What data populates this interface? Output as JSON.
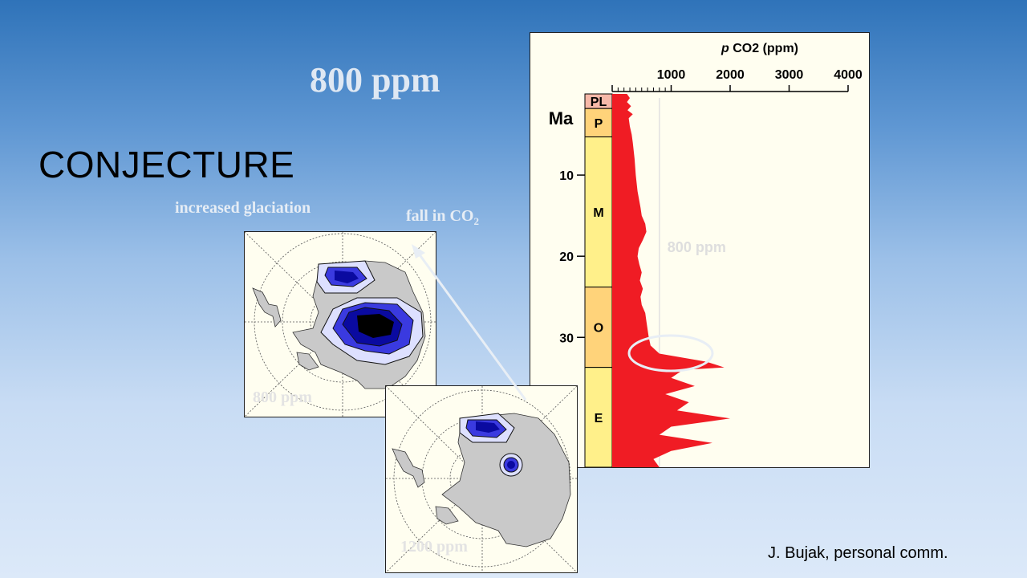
{
  "slide": {
    "headline": "800 ppm",
    "title": "CONJECTURE",
    "label_glaciation": "increased glaciation",
    "label_fall_co2": "fall in CO",
    "label_fall_co2_sub": "2",
    "credit": "J. Bujak, personal comm."
  },
  "maps": {
    "top": {
      "label": "800 ppm"
    },
    "bottom": {
      "label": "1200 ppm"
    }
  },
  "colors": {
    "co2_fill": "#f01c24",
    "epoch_yellow": "#fff08a",
    "epoch_orange": "#ffd37a",
    "epoch_pink": "#f6b8a8",
    "ice_dark": "#0a0aa0",
    "ice_mid": "#3a3ae0",
    "ice_light": "#dde0ff",
    "land_grey": "#c9c9c9"
  },
  "chart_data": {
    "type": "area",
    "xlabel_italic": "p",
    "xlabel_rest": " CO2 (ppm)",
    "ylabel": "Ma",
    "x_ticks": [
      "1000",
      "2000",
      "3000",
      "4000"
    ],
    "x_tick_values": [
      1000,
      2000,
      3000,
      4000
    ],
    "y_ticks": [
      "10",
      "20",
      "30"
    ],
    "y_tick_values": [
      10,
      20,
      30
    ],
    "xlim": [
      0,
      4000
    ],
    "ylim": [
      0,
      46
    ],
    "epochs": [
      {
        "label": "PL",
        "start": 0,
        "end": 1.8,
        "color": "#f6b8a8"
      },
      {
        "label": "P",
        "start": 1.8,
        "end": 5.3,
        "color": "#ffd37a"
      },
      {
        "label": "M",
        "start": 5.3,
        "end": 23.8,
        "color": "#fff08a"
      },
      {
        "label": "O",
        "start": 23.8,
        "end": 33.7,
        "color": "#ffd37a"
      },
      {
        "label": "E",
        "start": 33.7,
        "end": 46,
        "color": "#fff08a"
      }
    ],
    "reference_line": {
      "value": 800,
      "label": "800 ppm"
    },
    "highlight": {
      "ma": 33,
      "ppm": 950
    },
    "series": [
      {
        "values": [
          [
            0,
            250
          ],
          [
            0.5,
            300
          ],
          [
            1,
            250
          ],
          [
            1.5,
            320
          ],
          [
            2,
            260
          ],
          [
            2.5,
            350
          ],
          [
            3,
            280
          ],
          [
            4,
            300
          ],
          [
            5,
            330
          ],
          [
            6,
            350
          ],
          [
            8,
            380
          ],
          [
            10,
            400
          ],
          [
            12,
            430
          ],
          [
            14,
            480
          ],
          [
            15,
            500
          ],
          [
            16,
            560
          ],
          [
            17,
            580
          ],
          [
            18,
            520
          ],
          [
            19,
            450
          ],
          [
            20,
            430
          ],
          [
            21,
            460
          ],
          [
            22,
            500
          ],
          [
            23,
            470
          ],
          [
            24,
            520
          ],
          [
            25,
            480
          ],
          [
            26,
            500
          ],
          [
            27,
            560
          ],
          [
            28,
            580
          ],
          [
            29,
            600
          ],
          [
            30,
            620
          ],
          [
            31,
            650
          ],
          [
            32,
            800
          ],
          [
            33,
            1600
          ],
          [
            33.7,
            1900
          ],
          [
            34,
            1200
          ],
          [
            35,
            1000
          ],
          [
            36,
            1400
          ],
          [
            37,
            900
          ],
          [
            38,
            1300
          ],
          [
            39,
            1100
          ],
          [
            40,
            2000
          ],
          [
            41,
            1000
          ],
          [
            42,
            800
          ],
          [
            43,
            1700
          ],
          [
            44,
            1000
          ],
          [
            45,
            700
          ],
          [
            46,
            800
          ]
        ]
      }
    ]
  }
}
